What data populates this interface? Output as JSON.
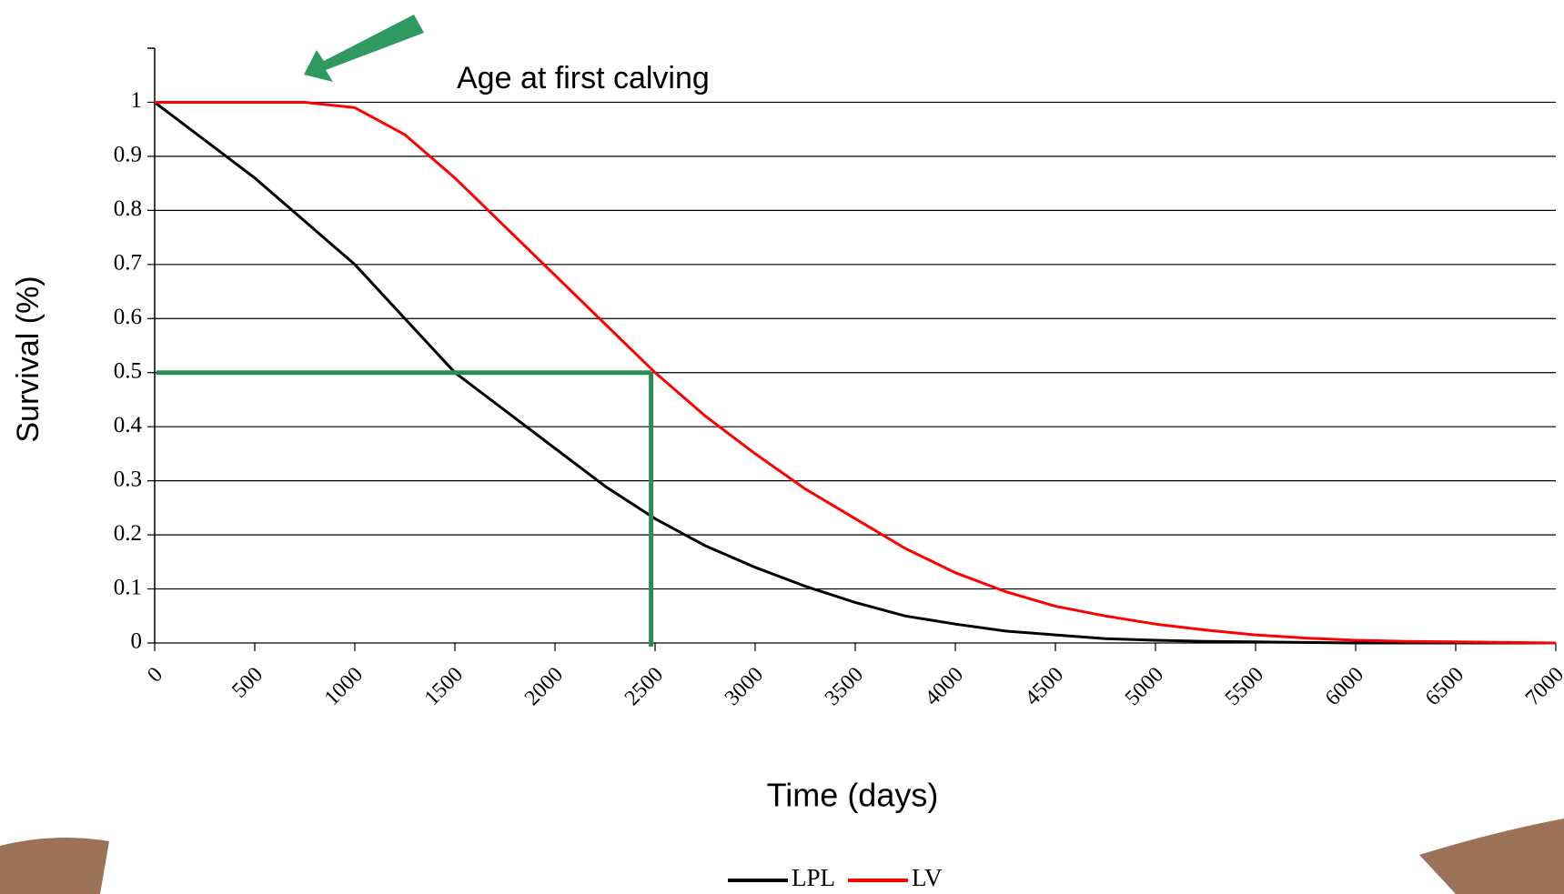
{
  "chart_data": {
    "type": "line",
    "x_label": "Time (days)",
    "y_label": "Survival (%)",
    "annotation": "Age at first calving",
    "x": [
      0,
      250,
      500,
      750,
      1000,
      1250,
      1500,
      1750,
      2000,
      2250,
      2500,
      2750,
      3000,
      3250,
      3500,
      3750,
      4000,
      4250,
      4500,
      4750,
      5000,
      5250,
      5500,
      5750,
      6000,
      6250,
      6500,
      6750,
      7000
    ],
    "series": [
      {
        "name": "LPL",
        "color": "#000000",
        "values": [
          1,
          0.93,
          0.86,
          0.78,
          0.7,
          0.6,
          0.5,
          0.43,
          0.36,
          0.29,
          0.23,
          0.18,
          0.14,
          0.105,
          0.075,
          0.05,
          0.035,
          0.022,
          0.015,
          0.008,
          0.005,
          0.003,
          0.002,
          0.001,
          0,
          0,
          0,
          0,
          0
        ]
      },
      {
        "name": "LV",
        "color": "#ff0000",
        "values": [
          1,
          1,
          1,
          1,
          0.99,
          0.94,
          0.86,
          0.77,
          0.68,
          0.59,
          0.5,
          0.42,
          0.35,
          0.285,
          0.23,
          0.175,
          0.13,
          0.095,
          0.068,
          0.05,
          0.035,
          0.024,
          0.015,
          0.009,
          0.005,
          0.003,
          0.002,
          0.001,
          0
        ]
      }
    ],
    "reference_lines": {
      "x": 2480,
      "y": 0.5,
      "color": "#2e8b57"
    },
    "xlim": [
      0,
      7000
    ],
    "xticks": [
      0,
      500,
      1000,
      1500,
      2000,
      2500,
      3000,
      3500,
      4000,
      4500,
      5000,
      5500,
      6000,
      6500,
      7000
    ],
    "ylim": [
      0,
      1.1
    ],
    "yticks": [
      0,
      0.1,
      0.2,
      0.3,
      0.4,
      0.5,
      0.6,
      0.7,
      0.8,
      0.9,
      1
    ],
    "grid": true,
    "legend": "bottom"
  }
}
